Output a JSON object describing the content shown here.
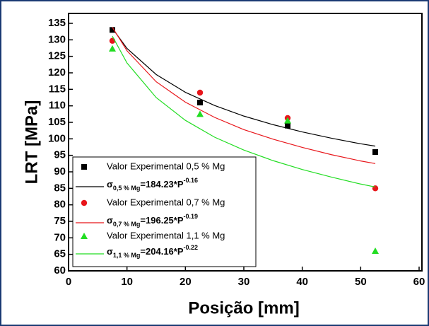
{
  "chart_data": {
    "type": "scatter",
    "x_label": "Posição [mm]",
    "y_label": "LRT [MPa]",
    "xlim": [
      0,
      60
    ],
    "ylim": [
      60,
      138
    ],
    "xticks": [
      0,
      10,
      20,
      30,
      40,
      50,
      60
    ],
    "yticks": [
      60,
      65,
      70,
      75,
      80,
      85,
      90,
      95,
      100,
      105,
      110,
      115,
      120,
      125,
      130,
      135
    ],
    "legend": "lower left",
    "series": [
      {
        "type": "scatter",
        "marker": "square",
        "name": "Valor Experimental 0,5 % Mg",
        "color": "#000000",
        "x": [
          7.5,
          22.5,
          37.5,
          52.5
        ],
        "values": [
          133,
          111,
          104,
          96
        ]
      },
      {
        "type": "line",
        "name": "σ",
        "name_subscript": "0,5 % Mg",
        "name_rest": "=184.23*P",
        "name_superscript": "-0.16",
        "color": "#000000",
        "x": [
          7.5,
          10,
          15,
          20,
          25,
          30,
          35,
          40,
          45,
          50,
          52.5
        ],
        "values": [
          133.5,
          127.4,
          119.5,
          114.1,
          110.1,
          106.9,
          104.3,
          102.1,
          100.2,
          98.5,
          97.8
        ]
      },
      {
        "type": "scatter",
        "marker": "circle",
        "name": "Valor Experimental 0,7 % Mg",
        "color": "#e8161b",
        "x": [
          7.5,
          22.5,
          37.5,
          52.5
        ],
        "values": [
          129.7,
          114,
          106.3,
          85
        ]
      },
      {
        "type": "line",
        "name": "σ",
        "name_subscript": "0,7 % Mg",
        "name_rest": "=196.25*P",
        "name_superscript": "-0.19",
        "color": "#e8161b",
        "x": [
          7.5,
          10,
          15,
          20,
          25,
          30,
          35,
          40,
          45,
          50,
          52.5
        ],
        "values": [
          133.8,
          126.7,
          117.3,
          111.1,
          106.5,
          102.8,
          99.9,
          97.4,
          95.2,
          93.3,
          92.5
        ]
      },
      {
        "type": "scatter",
        "marker": "triangle",
        "name": "Valor Experimental 1,1 % Mg",
        "color": "#22dd22",
        "x": [
          7.5,
          22.5,
          37.5,
          52.5
        ],
        "values": [
          127.3,
          107.5,
          105.5,
          66
        ]
      },
      {
        "type": "line",
        "name": "σ",
        "name_subscript": "1,1 % Mg",
        "name_rest": "=204.16*P",
        "name_superscript": "-0.22",
        "color": "#22dd22",
        "x": [
          7.5,
          10,
          15,
          20,
          25,
          30,
          35,
          40,
          45,
          50,
          52.5
        ],
        "values": [
          131.1,
          123.0,
          112.5,
          105.6,
          100.5,
          96.6,
          93.4,
          90.7,
          88.4,
          86.3,
          85.4
        ]
      }
    ]
  }
}
